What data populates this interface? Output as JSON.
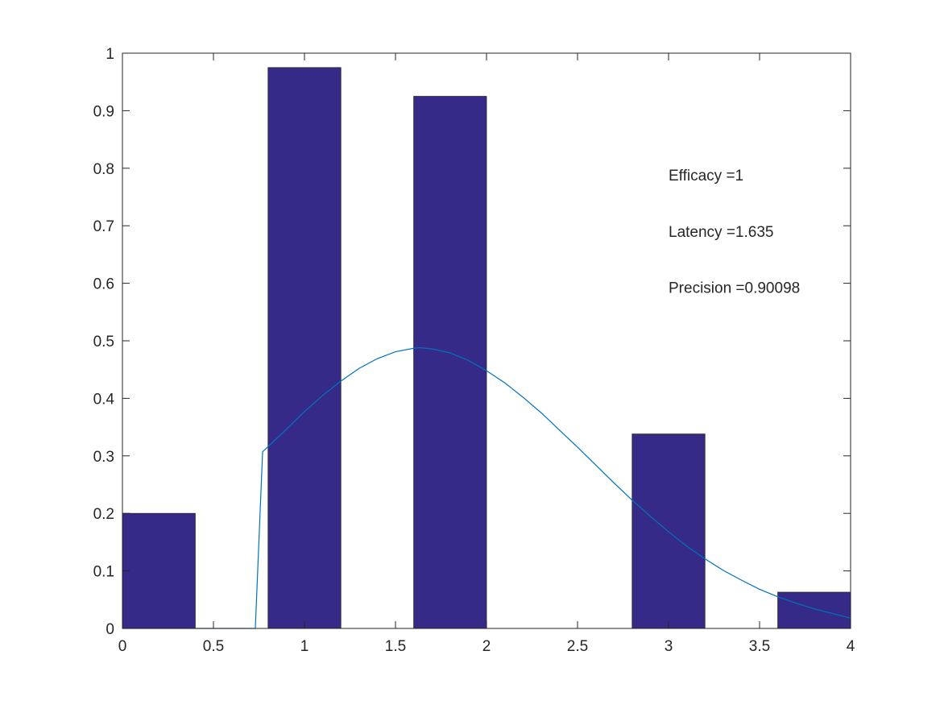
{
  "chart_data": {
    "type": "bar",
    "title": "",
    "xlabel": "",
    "ylabel": "",
    "xlim": [
      0,
      4
    ],
    "ylim": [
      0,
      1
    ],
    "xticks": [
      0,
      0.5,
      1,
      1.5,
      2,
      2.5,
      3,
      3.5,
      4
    ],
    "xtick_labels": [
      "0",
      "0.5",
      "1",
      "1.5",
      "2",
      "2.5",
      "3",
      "3.5",
      "4"
    ],
    "yticks": [
      0,
      0.1,
      0.2,
      0.3,
      0.4,
      0.5,
      0.6,
      0.7,
      0.8,
      0.9,
      1
    ],
    "ytick_labels": [
      "0",
      "0.1",
      "0.2",
      "0.3",
      "0.4",
      "0.5",
      "0.6",
      "0.7",
      "0.8",
      "0.9",
      "1"
    ],
    "grid": false,
    "bar_width": 0.4,
    "bars": [
      {
        "x": 0.2,
        "value": 0.2
      },
      {
        "x": 1.0,
        "value": 0.975
      },
      {
        "x": 1.8,
        "value": 0.925
      },
      {
        "x": 3.0,
        "value": 0.338
      },
      {
        "x": 3.8,
        "value": 0.063
      }
    ],
    "curve": {
      "x": [
        0,
        0.4,
        0.73,
        0.77,
        0.9,
        1.0,
        1.1,
        1.2,
        1.3,
        1.4,
        1.5,
        1.6,
        1.635,
        1.7,
        1.8,
        1.9,
        2.0,
        2.1,
        2.2,
        2.3,
        2.4,
        2.5,
        2.6,
        2.7,
        2.8,
        2.9,
        3.0,
        3.1,
        3.2,
        3.3,
        3.4,
        3.5,
        3.6,
        3.7,
        3.8,
        3.9,
        4.0
      ],
      "y": [
        0,
        0,
        0,
        0.307,
        0.346,
        0.377,
        0.405,
        0.43,
        0.452,
        0.469,
        0.481,
        0.487,
        0.488,
        0.486,
        0.479,
        0.466,
        0.448,
        0.427,
        0.402,
        0.375,
        0.345,
        0.315,
        0.284,
        0.253,
        0.223,
        0.195,
        0.168,
        0.143,
        0.121,
        0.101,
        0.084,
        0.068,
        0.055,
        0.044,
        0.034,
        0.026,
        0.018
      ]
    },
    "annotations": [
      {
        "text": "Efficacy =1",
        "x": 3.0,
        "y": 0.779
      },
      {
        "text": "Latency =1.635",
        "x": 3.0,
        "y": 0.681
      },
      {
        "text": "Precision =0.90098",
        "x": 3.0,
        "y": 0.583
      }
    ],
    "colors": {
      "bar_fill": "#352A87",
      "bar_edge": "#262626",
      "curve": "#0072BD",
      "axis": "#262626"
    }
  }
}
